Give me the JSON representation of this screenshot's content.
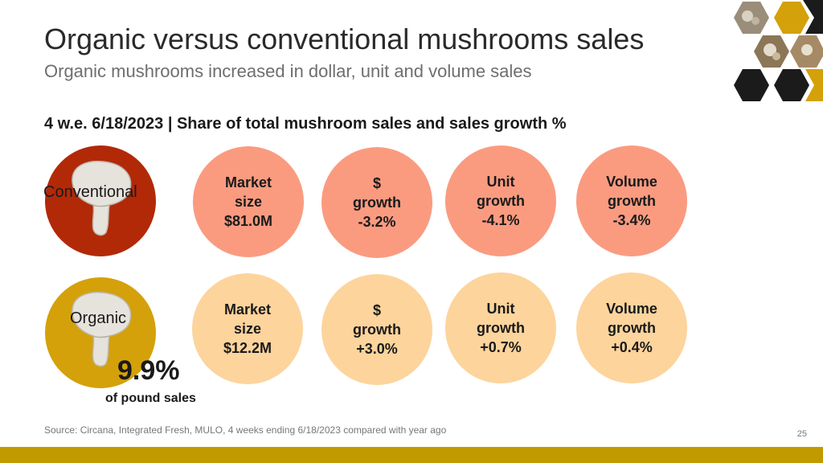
{
  "slide": {
    "title": "Organic versus conventional mushrooms sales",
    "subtitle": "Organic mushrooms increased in dollar, unit and volume sales",
    "section_heading": "4 w.e. 6/18/2023 | Share of total mushroom sales and sales growth %"
  },
  "conventional": {
    "label": "Conventional",
    "metrics": [
      {
        "line1": "Market",
        "line2": "size",
        "line3": "$81.0M"
      },
      {
        "line1": "$",
        "line2": "growth",
        "line3": "-3.2%"
      },
      {
        "line1": "Unit",
        "line2": "growth",
        "line3": "-4.1%"
      },
      {
        "line1": "Volume",
        "line2": "growth",
        "line3": "-3.4%"
      }
    ]
  },
  "organic": {
    "label": "Organic",
    "share_value": "9.9%",
    "share_caption": "of pound sales",
    "metrics": [
      {
        "line1": "Market",
        "line2": "size",
        "line3": "$12.2M"
      },
      {
        "line1": "$",
        "line2": "growth",
        "line3": "+3.0%"
      },
      {
        "line1": "Unit",
        "line2": "growth",
        "line3": "+0.7%"
      },
      {
        "line1": "Volume",
        "line2": "growth",
        "line3": "+0.4%"
      }
    ]
  },
  "footer": {
    "source": "Source: Circana, Integrated Fresh, MULO, 4 weeks ending 6/18/2023 compared with year ago",
    "page_number": "25"
  },
  "colors": {
    "conventional_category": "#b22908",
    "conventional_metric": "#fa9b80",
    "organic_category": "#d4a10a",
    "organic_metric": "#fdd49c",
    "accent_bar": "#c19a00"
  }
}
